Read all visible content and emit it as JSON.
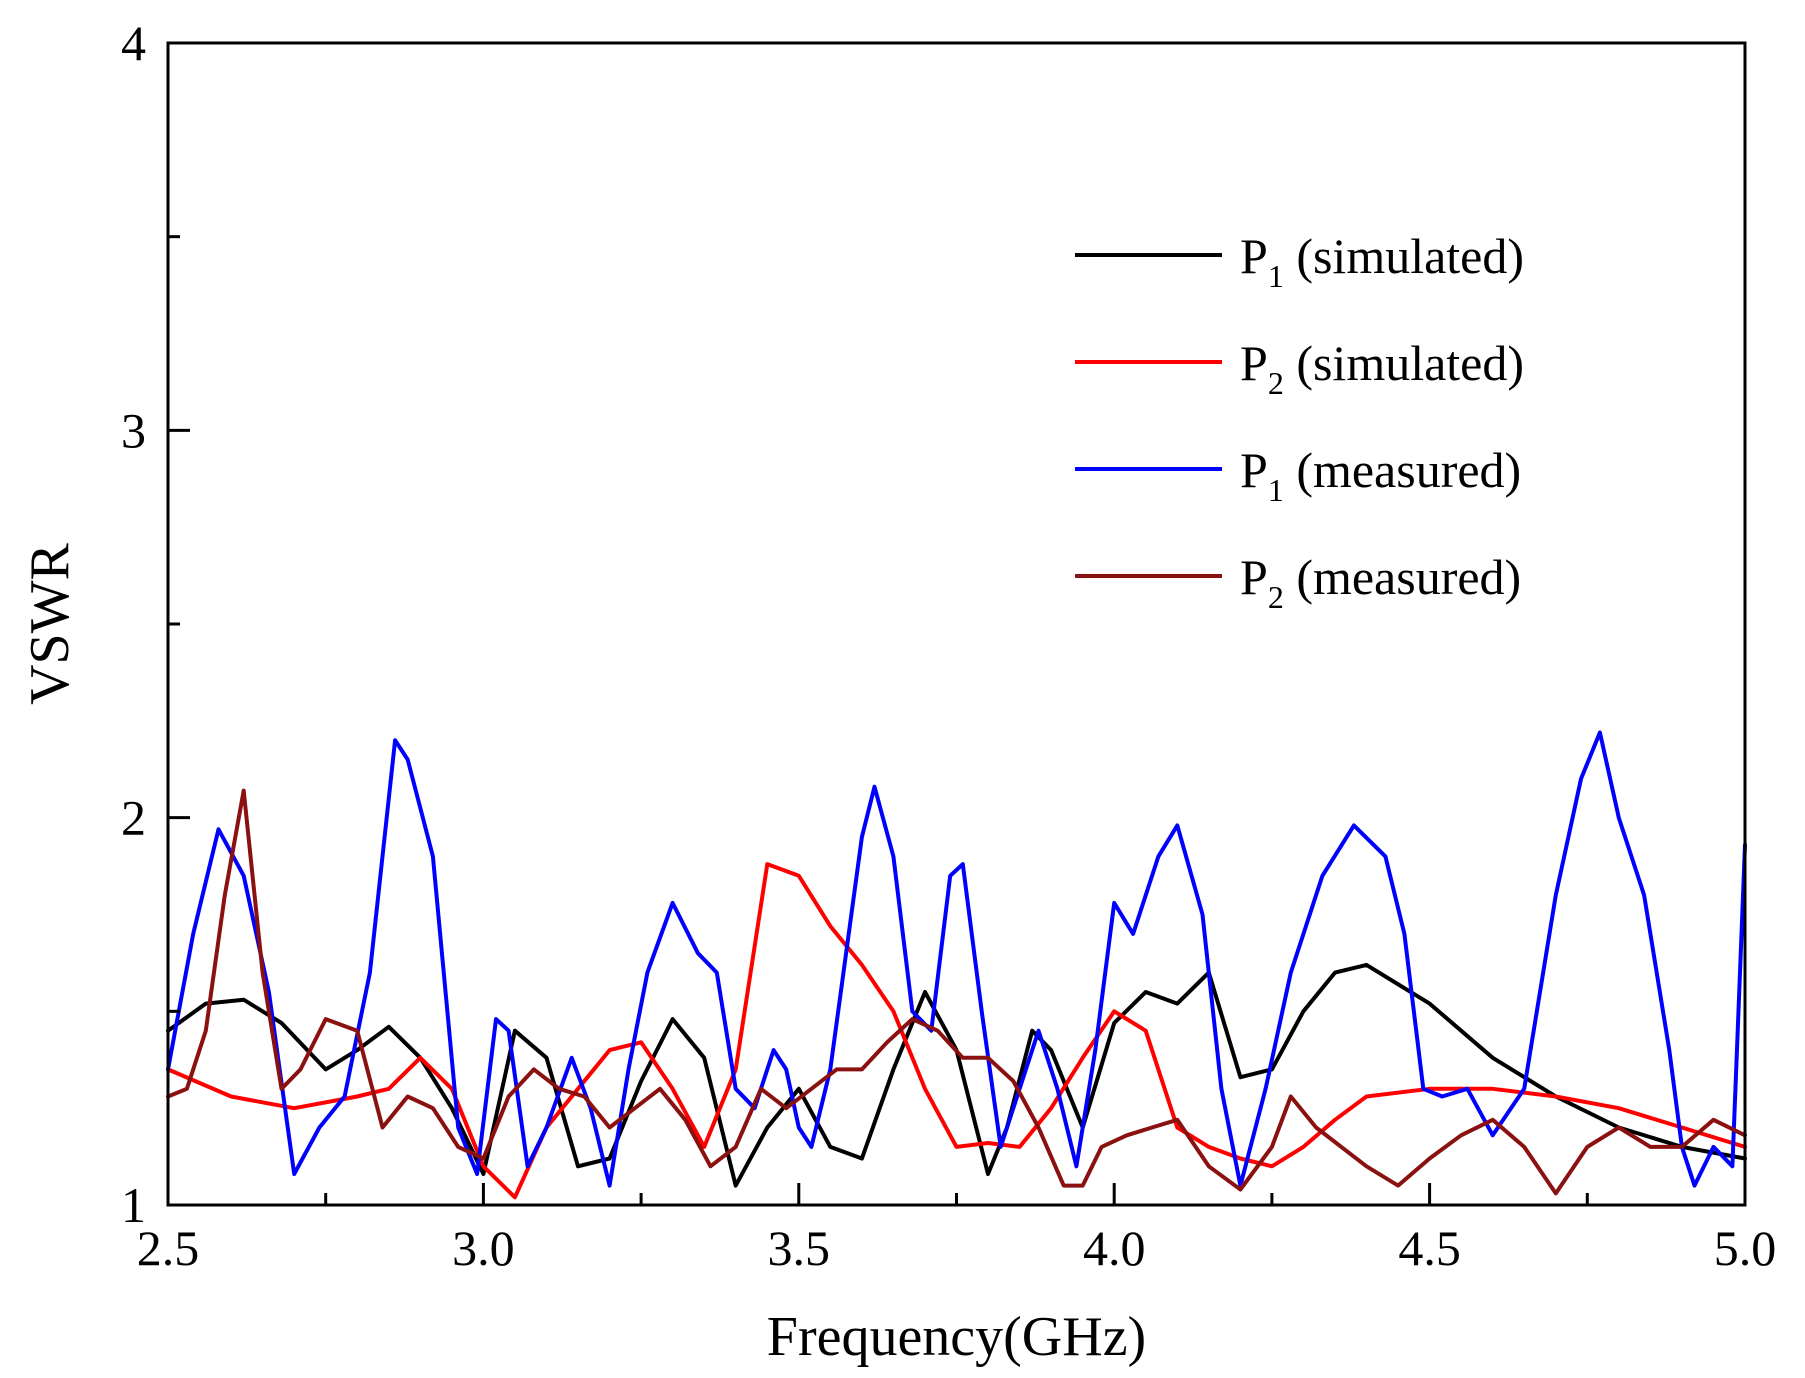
{
  "chart_data": {
    "type": "line",
    "title": "",
    "xlabel": "Frequency(GHz)",
    "ylabel": "VSWR",
    "xlim": [
      2.5,
      5.0
    ],
    "ylim": [
      1,
      4
    ],
    "xticks": [
      "2.5",
      "3.0",
      "3.5",
      "4.0",
      "4.5",
      "5.0"
    ],
    "yticks": [
      "1",
      "2",
      "3",
      "4"
    ],
    "grid": false,
    "legend_position": "top-right",
    "series": [
      {
        "name": "P1 (simulated)",
        "prefix": "P",
        "sub": "1",
        "suffix": " (simulated)",
        "color": "#000000",
        "x": [
          2.5,
          2.56,
          2.62,
          2.68,
          2.75,
          2.8,
          2.85,
          2.9,
          2.95,
          3.0,
          3.05,
          3.1,
          3.15,
          3.2,
          3.25,
          3.3,
          3.35,
          3.4,
          3.45,
          3.5,
          3.55,
          3.6,
          3.65,
          3.7,
          3.75,
          3.8,
          3.83,
          3.87,
          3.9,
          3.95,
          4.0,
          4.05,
          4.1,
          4.15,
          4.2,
          4.25,
          4.3,
          4.35,
          4.4,
          4.5,
          4.6,
          4.7,
          4.8,
          4.9,
          5.0
        ],
        "y": [
          1.45,
          1.52,
          1.53,
          1.47,
          1.35,
          1.4,
          1.46,
          1.38,
          1.25,
          1.08,
          1.45,
          1.38,
          1.1,
          1.12,
          1.32,
          1.48,
          1.38,
          1.05,
          1.2,
          1.3,
          1.15,
          1.12,
          1.35,
          1.55,
          1.4,
          1.08,
          1.2,
          1.45,
          1.4,
          1.2,
          1.47,
          1.55,
          1.52,
          1.6,
          1.33,
          1.35,
          1.5,
          1.6,
          1.62,
          1.52,
          1.38,
          1.28,
          1.2,
          1.15,
          1.12
        ]
      },
      {
        "name": "P2 (simulated)",
        "prefix": "P",
        "sub": "2",
        "suffix": " (simulated)",
        "color": "#ff0000",
        "x": [
          2.5,
          2.6,
          2.7,
          2.8,
          2.85,
          2.9,
          2.95,
          3.0,
          3.05,
          3.1,
          3.15,
          3.2,
          3.25,
          3.3,
          3.35,
          3.4,
          3.45,
          3.5,
          3.55,
          3.6,
          3.65,
          3.7,
          3.75,
          3.8,
          3.85,
          3.9,
          3.95,
          4.0,
          4.05,
          4.1,
          4.15,
          4.2,
          4.25,
          4.3,
          4.35,
          4.4,
          4.5,
          4.6,
          4.7,
          4.8,
          4.9,
          5.0
        ],
        "y": [
          1.35,
          1.28,
          1.25,
          1.28,
          1.3,
          1.38,
          1.3,
          1.1,
          1.02,
          1.2,
          1.3,
          1.4,
          1.42,
          1.3,
          1.15,
          1.35,
          1.88,
          1.85,
          1.72,
          1.62,
          1.5,
          1.3,
          1.15,
          1.16,
          1.15,
          1.25,
          1.38,
          1.5,
          1.45,
          1.2,
          1.15,
          1.12,
          1.1,
          1.15,
          1.22,
          1.28,
          1.3,
          1.3,
          1.28,
          1.25,
          1.2,
          1.15
        ]
      },
      {
        "name": "P1 (measured)",
        "prefix": "P",
        "sub": "1",
        "suffix": " (measured)",
        "color": "#0000ff",
        "x": [
          2.5,
          2.54,
          2.58,
          2.62,
          2.66,
          2.7,
          2.74,
          2.78,
          2.82,
          2.86,
          2.88,
          2.92,
          2.96,
          2.99,
          3.02,
          3.04,
          3.07,
          3.1,
          3.14,
          3.17,
          3.2,
          3.23,
          3.26,
          3.3,
          3.34,
          3.37,
          3.4,
          3.43,
          3.46,
          3.48,
          3.5,
          3.52,
          3.55,
          3.6,
          3.62,
          3.65,
          3.68,
          3.71,
          3.74,
          3.76,
          3.79,
          3.82,
          3.85,
          3.88,
          3.91,
          3.94,
          3.97,
          4.0,
          4.03,
          4.07,
          4.1,
          4.14,
          4.17,
          4.2,
          4.24,
          4.28,
          4.33,
          4.38,
          4.43,
          4.46,
          4.49,
          4.52,
          4.56,
          4.6,
          4.65,
          4.7,
          4.74,
          4.77,
          4.8,
          4.84,
          4.88,
          4.9,
          4.92,
          4.95,
          4.98,
          5.0
        ],
        "y": [
          1.35,
          1.7,
          1.97,
          1.85,
          1.55,
          1.08,
          1.2,
          1.28,
          1.6,
          2.2,
          2.15,
          1.9,
          1.2,
          1.08,
          1.48,
          1.45,
          1.1,
          1.2,
          1.38,
          1.25,
          1.05,
          1.35,
          1.6,
          1.78,
          1.65,
          1.6,
          1.3,
          1.25,
          1.4,
          1.35,
          1.2,
          1.15,
          1.35,
          1.95,
          2.08,
          1.9,
          1.5,
          1.45,
          1.85,
          1.88,
          1.5,
          1.15,
          1.3,
          1.45,
          1.3,
          1.1,
          1.4,
          1.78,
          1.7,
          1.9,
          1.98,
          1.75,
          1.3,
          1.05,
          1.3,
          1.6,
          1.85,
          1.98,
          1.9,
          1.7,
          1.3,
          1.28,
          1.3,
          1.18,
          1.3,
          1.8,
          2.1,
          2.22,
          2.0,
          1.8,
          1.4,
          1.15,
          1.05,
          1.15,
          1.1,
          1.93
        ]
      },
      {
        "name": "P2 (measured)",
        "prefix": "P",
        "sub": "2",
        "suffix": " (measured)",
        "color": "#8b1010",
        "x": [
          2.5,
          2.53,
          2.56,
          2.59,
          2.62,
          2.65,
          2.68,
          2.71,
          2.75,
          2.8,
          2.84,
          2.88,
          2.92,
          2.96,
          3.0,
          3.04,
          3.08,
          3.12,
          3.16,
          3.2,
          3.24,
          3.28,
          3.32,
          3.36,
          3.4,
          3.44,
          3.48,
          3.52,
          3.56,
          3.6,
          3.64,
          3.68,
          3.72,
          3.76,
          3.8,
          3.84,
          3.88,
          3.92,
          3.95,
          3.98,
          4.02,
          4.06,
          4.1,
          4.15,
          4.2,
          4.25,
          4.28,
          4.32,
          4.36,
          4.4,
          4.45,
          4.5,
          4.55,
          4.6,
          4.65,
          4.7,
          4.75,
          4.8,
          4.85,
          4.9,
          4.95,
          5.0
        ],
        "y": [
          1.28,
          1.3,
          1.45,
          1.8,
          2.07,
          1.6,
          1.3,
          1.35,
          1.48,
          1.45,
          1.2,
          1.28,
          1.25,
          1.15,
          1.12,
          1.28,
          1.35,
          1.3,
          1.28,
          1.2,
          1.25,
          1.3,
          1.22,
          1.1,
          1.15,
          1.3,
          1.25,
          1.3,
          1.35,
          1.35,
          1.42,
          1.48,
          1.45,
          1.38,
          1.38,
          1.32,
          1.2,
          1.05,
          1.05,
          1.15,
          1.18,
          1.2,
          1.22,
          1.1,
          1.04,
          1.15,
          1.28,
          1.2,
          1.15,
          1.1,
          1.05,
          1.12,
          1.18,
          1.22,
          1.15,
          1.03,
          1.15,
          1.2,
          1.15,
          1.15,
          1.22,
          1.18
        ]
      }
    ]
  }
}
